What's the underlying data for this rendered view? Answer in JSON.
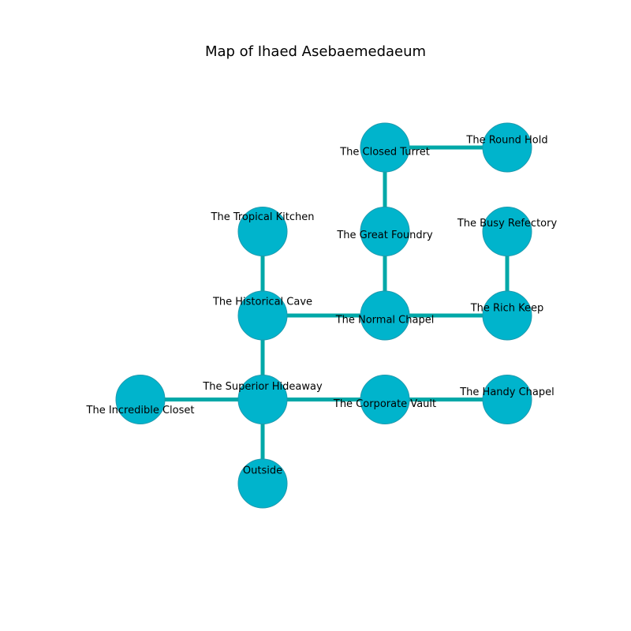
{
  "title": "Map of Ihaed Asebaemedaeum",
  "colors": {
    "node_fill": "#00b4cc",
    "node_stroke": "#1e9aae",
    "edge": "#00a8a8",
    "label": "#000000"
  },
  "rooms": [
    {
      "id": "closed_turret",
      "label": "The Closed Turret",
      "col": 2,
      "row": 0
    },
    {
      "id": "round_hold",
      "label": "The Round Hold",
      "col": 3,
      "row": 0
    },
    {
      "id": "tropical_kitchen",
      "label": "The Tropical Kitchen",
      "col": 1,
      "row": 1
    },
    {
      "id": "great_foundry",
      "label": "The Great Foundry",
      "col": 2,
      "row": 1
    },
    {
      "id": "busy_refectory",
      "label": "The Busy Refectory",
      "col": 3,
      "row": 1
    },
    {
      "id": "historical_cave",
      "label": "The Historical Cave",
      "col": 1,
      "row": 2
    },
    {
      "id": "normal_chapel",
      "label": "The Normal Chapel",
      "col": 2,
      "row": 2
    },
    {
      "id": "rich_keep",
      "label": "The Rich Keep",
      "col": 3,
      "row": 2
    },
    {
      "id": "incredible_closet",
      "label": "The Incredible Closet",
      "col": 0,
      "row": 3
    },
    {
      "id": "superior_hideaway",
      "label": "The Superior Hideaway",
      "col": 1,
      "row": 3
    },
    {
      "id": "corporate_vault",
      "label": "The Corporate Vault",
      "col": 2,
      "row": 3
    },
    {
      "id": "handy_chapel",
      "label": "The Handy Chapel",
      "col": 3,
      "row": 3
    },
    {
      "id": "outside",
      "label": "Outside",
      "col": 1,
      "row": 4
    }
  ],
  "connections": [
    [
      "closed_turret",
      "round_hold"
    ],
    [
      "closed_turret",
      "great_foundry"
    ],
    [
      "great_foundry",
      "normal_chapel"
    ],
    [
      "tropical_kitchen",
      "historical_cave"
    ],
    [
      "historical_cave",
      "normal_chapel"
    ],
    [
      "normal_chapel",
      "rich_keep"
    ],
    [
      "busy_refectory",
      "rich_keep"
    ],
    [
      "historical_cave",
      "superior_hideaway"
    ],
    [
      "incredible_closet",
      "superior_hideaway"
    ],
    [
      "superior_hideaway",
      "corporate_vault"
    ],
    [
      "corporate_vault",
      "handy_chapel"
    ],
    [
      "superior_hideaway",
      "outside"
    ]
  ]
}
